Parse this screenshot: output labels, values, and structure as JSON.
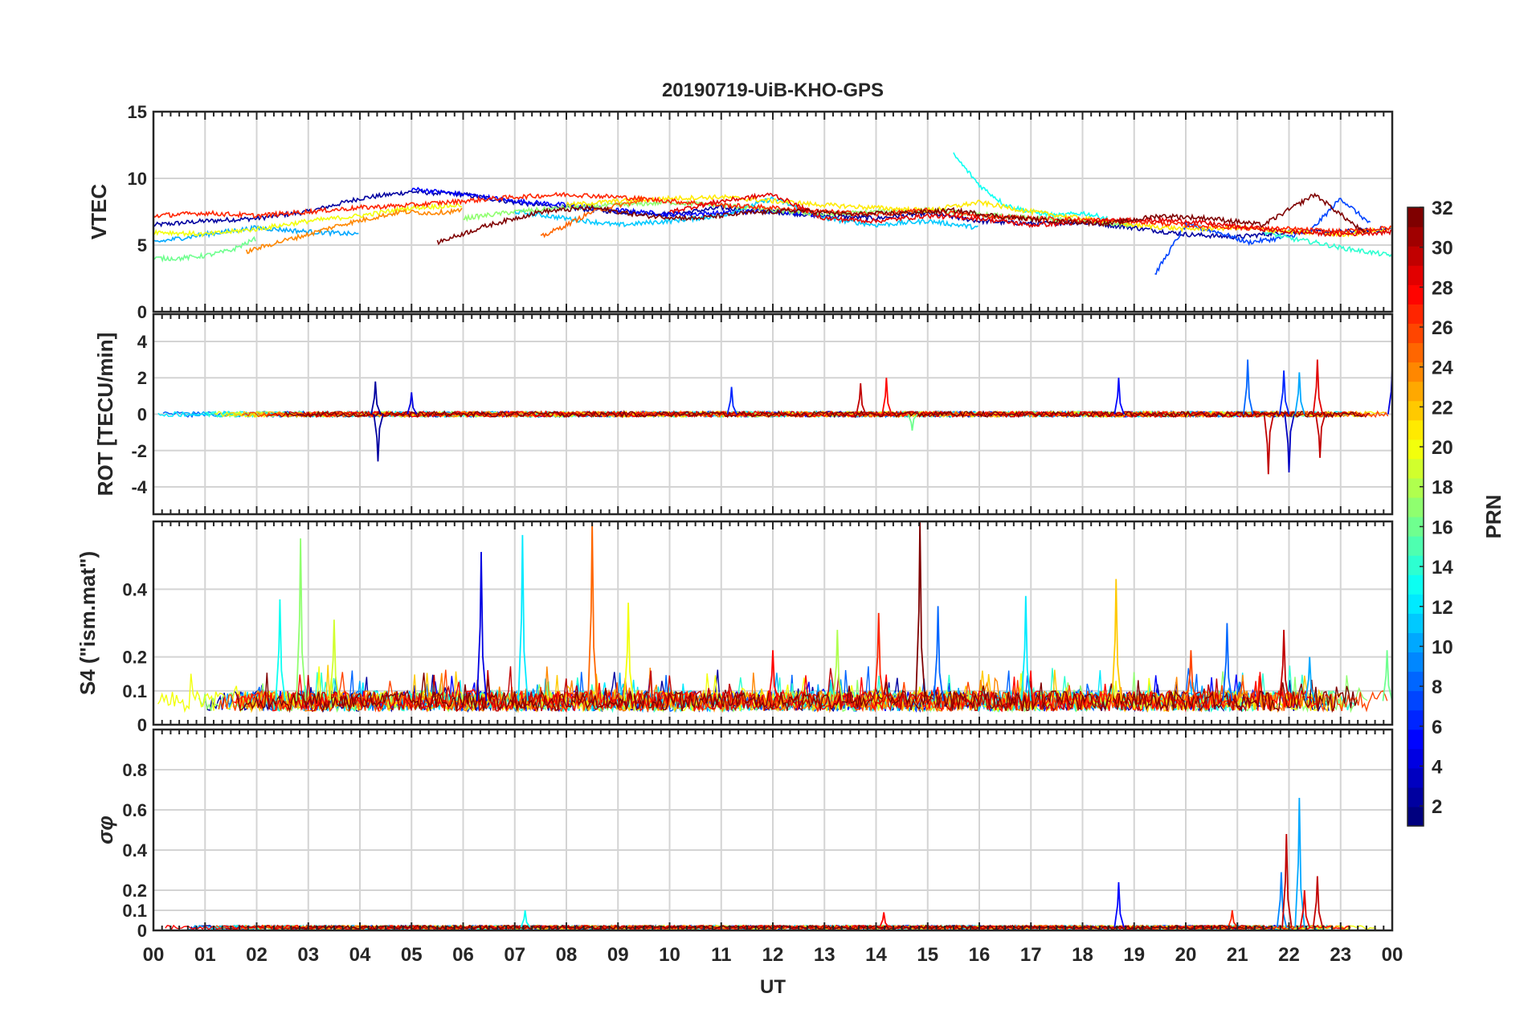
{
  "chart_data": {
    "type": "line",
    "title": "20190719-UiB-KHO-GPS",
    "xlabel": "UT",
    "x_ticks": [
      "00",
      "01",
      "02",
      "03",
      "04",
      "05",
      "06",
      "07",
      "08",
      "09",
      "10",
      "11",
      "12",
      "13",
      "14",
      "15",
      "16",
      "17",
      "18",
      "19",
      "20",
      "21",
      "22",
      "23",
      "00"
    ],
    "xlim": [
      0,
      24
    ],
    "grid": true,
    "colorbar": {
      "label": "PRN",
      "range": [
        1,
        32
      ],
      "ticks": [
        "2",
        "4",
        "6",
        "8",
        "10",
        "12",
        "14",
        "16",
        "18",
        "20",
        "22",
        "24",
        "26",
        "28",
        "30",
        "32"
      ],
      "colormap": "jet",
      "placement": "right"
    },
    "panels": [
      {
        "ylabel": "VTEC",
        "ylim": [
          0,
          15
        ],
        "yticks": [
          "0",
          "5",
          "10",
          "15"
        ],
        "ytick_values": [
          0,
          5,
          10,
          15
        ],
        "series": [
          {
            "prn": 2,
            "start": 0,
            "step": 1,
            "values": [
              6.5,
              6.8,
              7.0,
              7.5,
              8.5,
              9.0,
              8.8,
              8.2,
              7.8,
              7.5,
              7.3,
              7.8,
              7.5,
              7.2,
              7.0,
              7.4,
              6.8,
              6.6,
              6.7,
              6.3,
              5.8,
              5.6,
              6.0,
              6.0,
              6.2
            ]
          },
          {
            "prn": 5,
            "start": 5,
            "step": 1,
            "values": [
              9.2,
              8.8,
              8.3,
              8.0,
              7.6,
              7.3,
              7.4,
              7.6,
              7.2
            ]
          },
          {
            "prn": 7,
            "start": 19.4,
            "step": 0.6,
            "values": [
              2.8,
              6.5,
              6.0,
              5.2,
              5.5,
              6.0,
              8.5,
              6.5
            ]
          },
          {
            "prn": 10,
            "start": 0,
            "step": 1,
            "values": [
              5.2,
              5.8,
              6.3,
              6.0,
              5.8
            ]
          },
          {
            "prn": 11,
            "start": 7,
            "step": 1,
            "values": [
              7.5,
              7.0,
              6.5,
              6.8,
              7.2,
              8.5,
              7.0,
              6.5,
              6.8,
              6.3
            ]
          },
          {
            "prn": 13,
            "start": 15.5,
            "step": 0.5,
            "values": [
              11.8,
              9.5,
              8.0,
              7.5,
              7.2,
              7.4,
              7.0
            ]
          },
          {
            "prn": 14,
            "start": 21.5,
            "step": 0.5,
            "values": [
              6.0,
              5.5,
              5.2,
              4.8,
              4.5,
              4.2,
              4.0,
              3.9,
              3.9
            ]
          },
          {
            "prn": 16,
            "start": 0,
            "step": 0.5,
            "values": [
              4.0,
              4.0,
              4.2,
              4.6,
              5.5
            ]
          },
          {
            "prn": 17,
            "start": 6,
            "step": 1,
            "values": [
              7.0,
              7.5,
              7.8,
              8.0,
              8.2,
              8.0,
              7.6,
              7.3,
              7.5,
              7.6,
              7.3,
              7.0,
              6.8,
              6.5
            ]
          },
          {
            "prn": 20,
            "start": 0,
            "step": 1,
            "values": [
              6.0,
              5.8,
              6.2,
              6.8,
              7.2,
              7.8,
              8.0
            ]
          },
          {
            "prn": 21,
            "start": 8,
            "step": 1,
            "values": [
              8.0,
              8.3,
              8.5,
              8.6,
              8.3,
              8.0,
              7.8,
              7.6,
              8.2,
              7.5,
              7.0,
              6.5,
              6.2,
              6.3,
              6.0,
              5.8,
              6.2
            ]
          },
          {
            "prn": 24,
            "start": 1.8,
            "step": 0.6,
            "values": [
              4.5,
              5.2,
              5.8,
              6.5,
              7.0,
              7.5,
              7.4,
              7.6
            ]
          },
          {
            "prn": 25,
            "start": 7.5,
            "step": 0.5,
            "values": [
              5.6,
              6.5,
              7.5,
              8.0,
              8.3
            ]
          },
          {
            "prn": 27,
            "start": 0,
            "step": 1,
            "values": [
              7.2,
              7.4,
              7.2,
              7.5,
              7.8,
              8.0,
              8.3,
              8.6,
              8.8,
              8.6,
              8.3,
              8.0,
              7.8,
              7.5,
              7.3,
              7.6,
              7.2,
              7.0,
              6.9,
              6.8,
              6.5,
              6.3,
              6.2,
              6.0,
              6.3
            ]
          },
          {
            "prn": 29,
            "start": 10,
            "step": 1,
            "values": [
              7.5,
              8.3,
              8.8,
              7.0,
              6.8,
              7.2,
              7.0,
              6.5,
              6.7,
              6.9,
              6.8,
              6.4,
              6.0,
              5.8,
              6.0
            ]
          },
          {
            "prn": 32,
            "start": 5.5,
            "step": 1,
            "values": [
              5.2,
              6.5,
              7.5,
              7.8,
              7.2,
              7.0,
              7.4,
              7.6,
              7.3,
              7.4,
              7.6,
              7.1,
              6.8,
              6.6,
              7.2,
              7.0,
              6.5,
              8.8,
              5.8
            ]
          }
        ]
      },
      {
        "ylabel": "ROT [TECU/min]",
        "ylim": [
          -5.5,
          5.5
        ],
        "yticks": [
          "-4",
          "-2",
          "0",
          "2",
          "4"
        ],
        "ytick_values": [
          -4,
          -2,
          0,
          2,
          4
        ],
        "baseline": 0,
        "noise": 0.15,
        "spikes": [
          [
            4.3,
            1.8,
            2
          ],
          [
            4.35,
            -2.6,
            2
          ],
          [
            5.0,
            1.2,
            4
          ],
          [
            11.2,
            1.5,
            6
          ],
          [
            13.7,
            1.7,
            30
          ],
          [
            14.2,
            2.0,
            28
          ],
          [
            14.7,
            -0.9,
            16
          ],
          [
            18.7,
            2.0,
            5
          ],
          [
            21.2,
            3.0,
            8
          ],
          [
            21.6,
            -3.3,
            30
          ],
          [
            21.9,
            2.4,
            6
          ],
          [
            22.0,
            -3.2,
            3
          ],
          [
            22.2,
            2.3,
            10
          ],
          [
            22.55,
            3.0,
            29
          ],
          [
            22.6,
            -2.4,
            30
          ],
          [
            24,
            2.5,
            4
          ]
        ]
      },
      {
        "ylabel": "S4 (\"ism.mat\")",
        "ylim": [
          0,
          0.6
        ],
        "yticks": [
          "0",
          "0.1",
          "0.2",
          "0.4"
        ],
        "ytick_values": [
          0,
          0.1,
          0.2,
          0.4
        ],
        "baseline": 0.07,
        "noise": 0.03,
        "spikes": [
          [
            2.45,
            0.37,
            13
          ],
          [
            2.85,
            0.55,
            17
          ],
          [
            3.5,
            0.31,
            19
          ],
          [
            6.35,
            0.51,
            4
          ],
          [
            7.15,
            0.56,
            12
          ],
          [
            8.5,
            0.6,
            25
          ],
          [
            9.2,
            0.36,
            20
          ],
          [
            12.0,
            0.22,
            28
          ],
          [
            13.25,
            0.28,
            18
          ],
          [
            14.05,
            0.33,
            27
          ],
          [
            14.85,
            0.6,
            32
          ],
          [
            15.2,
            0.35,
            8
          ],
          [
            16.9,
            0.38,
            12
          ],
          [
            18.65,
            0.43,
            22
          ],
          [
            20.1,
            0.22,
            26
          ],
          [
            20.8,
            0.3,
            8
          ],
          [
            21.9,
            0.28,
            30
          ],
          [
            22.4,
            0.2,
            10
          ],
          [
            23.9,
            0.22,
            16
          ]
        ]
      },
      {
        "ylabel": "σφ",
        "ylim": [
          0,
          1
        ],
        "yticks": [
          "0",
          "0.1",
          "0.2",
          "0.4",
          "0.6",
          "0.8"
        ],
        "ytick_values": [
          0,
          0.1,
          0.2,
          0.4,
          0.6,
          0.8
        ],
        "baseline": 0.015,
        "noise": 0.01,
        "spikes": [
          [
            7.2,
            0.1,
            13
          ],
          [
            14.15,
            0.09,
            28
          ],
          [
            18.7,
            0.24,
            5
          ],
          [
            20.9,
            0.1,
            27
          ],
          [
            21.85,
            0.29,
            9
          ],
          [
            21.95,
            0.48,
            30
          ],
          [
            22.2,
            0.66,
            10
          ],
          [
            22.3,
            0.2,
            29
          ],
          [
            22.55,
            0.27,
            30
          ]
        ]
      }
    ]
  }
}
